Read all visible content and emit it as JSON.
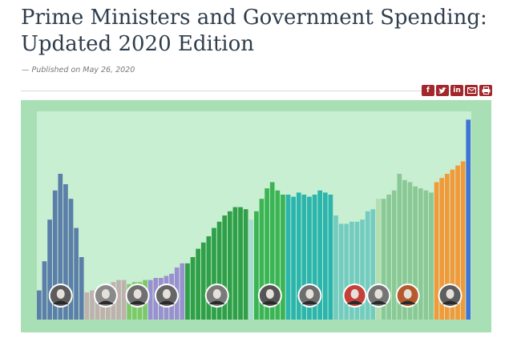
{
  "article": {
    "title_line1": "Prime Ministers and Government Spending:",
    "title_line2": "Updated 2020 Edition",
    "published": "— Published on May 26, 2020"
  },
  "share": {
    "items": [
      {
        "label": "f",
        "icon": "facebook-icon"
      },
      {
        "label": "",
        "icon": "twitter-icon"
      },
      {
        "label": "in",
        "icon": "linkedin-icon"
      },
      {
        "label": "",
        "icon": "email-icon"
      },
      {
        "label": "",
        "icon": "print-icon"
      }
    ],
    "color": "#a3282c"
  },
  "chart_data": {
    "type": "bar",
    "title": "",
    "xlabel": "",
    "ylabel": "",
    "ylim": [
      0,
      100
    ],
    "grid": false,
    "background": "#c9efd3",
    "segments": [
      {
        "color": "#5b7fa8",
        "values": [
          14,
          28,
          48,
          62,
          70,
          65,
          58,
          44,
          30
        ]
      },
      {
        "color": "#bfb1ad",
        "values": [
          13,
          14,
          15,
          16,
          17,
          18,
          19,
          19
        ]
      },
      {
        "color": "#7cc96a",
        "values": [
          17,
          18,
          18,
          19
        ]
      },
      {
        "color": "#9a8fd0",
        "values": [
          19,
          20,
          20,
          21,
          22,
          25,
          27
        ]
      },
      {
        "color": "#2f9f48",
        "values": [
          27,
          30,
          34,
          37,
          40,
          44,
          47,
          50,
          52,
          54,
          54,
          53
        ]
      },
      {
        "color": "#a9dcd0",
        "values": [
          48
        ]
      },
      {
        "color": "#3bb554",
        "values": [
          52,
          58,
          63,
          66,
          62,
          60
        ]
      },
      {
        "color": "#2bb5ad",
        "values": [
          60,
          59,
          61,
          60,
          59,
          60,
          62,
          61,
          60
        ]
      },
      {
        "color": "#74ccc0",
        "values": [
          50,
          46,
          46,
          47,
          47,
          48,
          52,
          53
        ]
      },
      {
        "color": "#b5ddb0",
        "values": [
          58
        ]
      },
      {
        "color": "#8ac996",
        "values": [
          58,
          60,
          62,
          70,
          67,
          66,
          64,
          63,
          62,
          61
        ]
      },
      {
        "color": "#f29a3a",
        "values": [
          66,
          68,
          70,
          72,
          74,
          76
        ]
      },
      {
        "color": "#3d74d6",
        "values": [
          96
        ]
      }
    ],
    "portraits": [
      {
        "segment": 0,
        "tone": "#5c5c5c"
      },
      {
        "segment": 1,
        "tone": "#8a8a8a"
      },
      {
        "segment": 2,
        "tone": "#707070"
      },
      {
        "segment": 3,
        "tone": "#666666"
      },
      {
        "segment": 4,
        "tone": "#7a7a7a"
      },
      {
        "segment": 6,
        "tone": "#555555"
      },
      {
        "segment": 7,
        "tone": "#6e6e6e"
      },
      {
        "segment": 8,
        "tone": "#c4413a"
      },
      {
        "segment": 9,
        "tone": "#757575"
      },
      {
        "segment": 10,
        "tone": "#b45a2d"
      },
      {
        "segment": 11,
        "tone": "#5e5e5e"
      }
    ]
  }
}
